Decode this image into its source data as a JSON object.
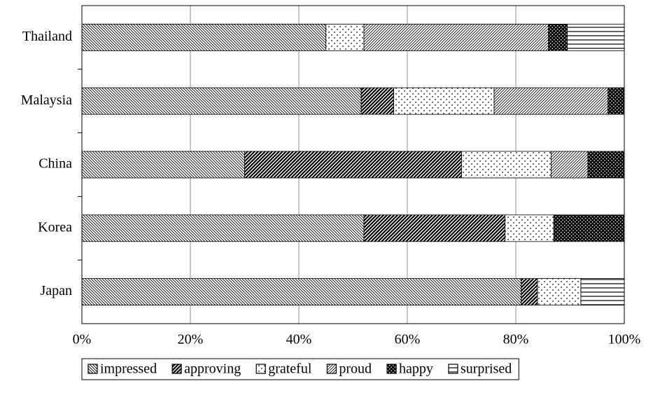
{
  "chart_data": {
    "type": "stacked-barh",
    "categories": [
      "Thailand",
      "Malaysia",
      "China",
      "Korea",
      "Japan"
    ],
    "series": [
      {
        "name": "impressed",
        "values": [
          45,
          51.5,
          30,
          52,
          81
        ]
      },
      {
        "name": "approving",
        "values": [
          0,
          6,
          40,
          26,
          3
        ]
      },
      {
        "name": "grateful",
        "values": [
          7,
          18.5,
          16.5,
          9,
          8
        ]
      },
      {
        "name": "proud",
        "values": [
          34,
          21,
          6.8,
          0,
          0
        ]
      },
      {
        "name": "happy",
        "values": [
          3.5,
          3,
          6.7,
          13,
          0
        ]
      },
      {
        "name": "surprised",
        "values": [
          10.5,
          0,
          0,
          0,
          8
        ]
      }
    ],
    "xlim": [
      0,
      100
    ],
    "xticks": [
      {
        "value": 0,
        "label": "0%"
      },
      {
        "value": 20,
        "label": "20%"
      },
      {
        "value": 40,
        "label": "40%"
      },
      {
        "value": 60,
        "label": "60%"
      },
      {
        "value": 80,
        "label": "80%"
      },
      {
        "value": 100,
        "label": "100%"
      }
    ],
    "grid": true,
    "legend": "bottom"
  }
}
